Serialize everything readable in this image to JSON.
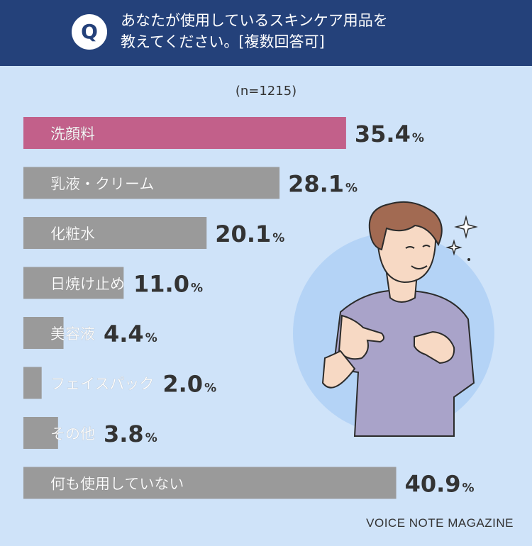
{
  "header": {
    "badge": "Q",
    "line1": "あなたが使用しているスキンケア用品を",
    "line2": "教えてください。[複数回答可]"
  },
  "sample_note": "(n=1215)",
  "chart_data": {
    "type": "bar",
    "orientation": "horizontal",
    "categories": [
      "洗顔料",
      "乳液・クリーム",
      "化粧水",
      "日焼け止め",
      "美容液",
      "フェイスパック",
      "その他",
      "何も使用していない"
    ],
    "values": [
      35.4,
      28.1,
      20.1,
      11.0,
      4.4,
      2.0,
      3.8,
      40.9
    ],
    "value_labels": [
      "35.4",
      "28.1",
      "20.1",
      "11.0",
      "4.4",
      "2.0",
      "3.8",
      "40.9"
    ],
    "unit": "%",
    "highlight_index": 0,
    "colors": {
      "highlight": "#c2608a",
      "default": "#9a9a9a",
      "label_dark": "#333333"
    }
  },
  "footer": {
    "credit": "VOICE NOTE MAGAZINE"
  }
}
